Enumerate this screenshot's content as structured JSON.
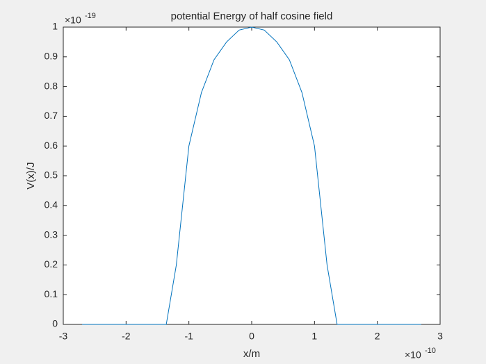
{
  "chart_data": {
    "type": "line",
    "title": "potential Energy of half cosine field",
    "x_label": "x/m",
    "y_label": "V(x)/J",
    "exponent_base": "×10",
    "x_exponent": "-10",
    "y_exponent": "-19",
    "x": [
      -2.7,
      -1.36,
      -1.2,
      -1.0,
      -0.8,
      -0.6,
      -0.4,
      -0.2,
      0,
      0.2,
      0.4,
      0.6,
      0.8,
      1.0,
      1.2,
      1.36,
      2.7
    ],
    "series": [
      {
        "name": "V(x)",
        "color": "#0072bd",
        "values": [
          0,
          0,
          0.2,
          0.6,
          0.78,
          0.89,
          0.95,
          0.99,
          1,
          0.99,
          0.95,
          0.89,
          0.78,
          0.6,
          0.2,
          0,
          0
        ]
      }
    ],
    "xlim": [
      -3,
      3
    ],
    "xticks": [
      -3,
      -2,
      -1,
      0,
      1,
      2,
      3
    ],
    "ylim": [
      0,
      1
    ],
    "yticks": [
      0,
      0.1,
      0.2,
      0.3,
      0.4,
      0.5,
      0.6,
      0.7,
      0.8,
      0.9,
      1
    ],
    "grid": false
  }
}
